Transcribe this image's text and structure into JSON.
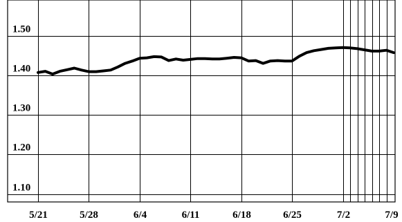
{
  "chart_data": {
    "type": "line",
    "title": "",
    "xlabel": "",
    "ylabel": "",
    "x": [
      "5/21",
      "5/22",
      "5/23",
      "5/24",
      "5/25",
      "5/26",
      "5/27",
      "5/28",
      "5/29",
      "5/30",
      "5/31",
      "6/1",
      "6/2",
      "6/3",
      "6/4",
      "6/5",
      "6/6",
      "6/7",
      "6/8",
      "6/9",
      "6/10",
      "6/11",
      "6/12",
      "6/13",
      "6/14",
      "6/15",
      "6/16",
      "6/17",
      "6/18",
      "6/19",
      "6/20",
      "6/21",
      "6/22",
      "6/23",
      "6/24",
      "6/25",
      "6/26",
      "6/27",
      "6/28",
      "6/29",
      "6/30",
      "7/1",
      "7/2",
      "7/3",
      "7/4",
      "7/5",
      "7/6",
      "7/7",
      "7/8",
      "7/9"
    ],
    "series": [
      {
        "values": [
          1.407,
          1.41,
          1.403,
          1.41,
          1.414,
          1.418,
          1.413,
          1.409,
          1.409,
          1.411,
          1.413,
          1.421,
          1.43,
          1.436,
          1.443,
          1.444,
          1.447,
          1.446,
          1.437,
          1.441,
          1.438,
          1.44,
          1.442,
          1.442,
          1.441,
          1.441,
          1.443,
          1.445,
          1.444,
          1.436,
          1.437,
          1.43,
          1.436,
          1.437,
          1.436,
          1.436,
          1.448,
          1.457,
          1.462,
          1.465,
          1.468,
          1.469,
          1.47,
          1.469,
          1.467,
          1.464,
          1.461,
          1.461,
          1.463,
          1.457
        ]
      }
    ],
    "x_ticks": [
      "5/21",
      "5/28",
      "6/4",
      "6/11",
      "6/18",
      "6/25",
      "7/2",
      "7/9"
    ],
    "y_ticks": [
      "1.10",
      "1.20",
      "1.30",
      "1.40",
      "1.50"
    ],
    "y_tick_values": [
      1.1,
      1.2,
      1.3,
      1.4,
      1.5
    ],
    "ylim": [
      1.08,
      1.59
    ],
    "xlim": [
      "5/21",
      "7/9"
    ],
    "extra_daily_gridlines_from": "7/2",
    "grid": true,
    "line_color": "#000000"
  }
}
